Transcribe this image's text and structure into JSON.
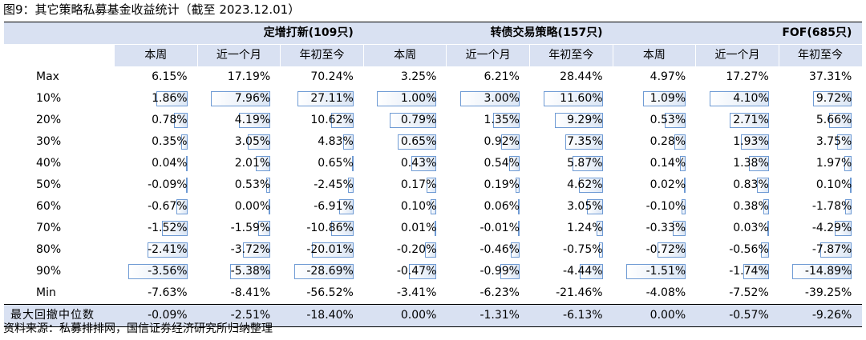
{
  "title": "图9：其它策略私募基金收益统计（截至 2023.12.01）",
  "groups": [
    "定增打新(109只)",
    "转债交易策略(157只)",
    "FOF(685只)"
  ],
  "subheaders": [
    "本周",
    "近一个月",
    "年初至今",
    "本周",
    "近一个月",
    "年初至今",
    "本周",
    "近一个月",
    "年初至今"
  ],
  "rows": [
    {
      "label": "Max",
      "values": [
        "6.15%",
        "17.19%",
        "70.24%",
        "3.25%",
        "6.21%",
        "28.44%",
        "4.97%",
        "17.27%",
        "37.31%"
      ]
    },
    {
      "label": "10%",
      "values": [
        "1.86%",
        "7.96%",
        "27.11%",
        "1.00%",
        "3.00%",
        "11.60%",
        "1.09%",
        "4.10%",
        "9.72%"
      ]
    },
    {
      "label": "20%",
      "values": [
        "0.78%",
        "4.19%",
        "10.62%",
        "0.79%",
        "1.35%",
        "9.29%",
        "0.53%",
        "2.71%",
        "5.66%"
      ]
    },
    {
      "label": "30%",
      "values": [
        "0.35%",
        "3.05%",
        "4.83%",
        "0.65%",
        "0.92%",
        "7.35%",
        "0.28%",
        "1.93%",
        "3.75%"
      ]
    },
    {
      "label": "40%",
      "values": [
        "0.04%",
        "2.01%",
        "0.65%",
        "0.43%",
        "0.54%",
        "5.87%",
        "0.14%",
        "1.38%",
        "1.97%"
      ]
    },
    {
      "label": "50%",
      "values": [
        "-0.09%",
        "0.53%",
        "-2.45%",
        "0.17%",
        "0.19%",
        "4.62%",
        "0.02%",
        "0.83%",
        "0.10%"
      ]
    },
    {
      "label": "60%",
      "values": [
        "-0.67%",
        "0.00%",
        "-6.91%",
        "0.10%",
        "0.06%",
        "3.05%",
        "-0.10%",
        "0.38%",
        "-1.78%"
      ]
    },
    {
      "label": "70%",
      "values": [
        "-1.52%",
        "-1.59%",
        "-10.86%",
        "0.01%",
        "-0.01%",
        "1.24%",
        "-0.33%",
        "0.03%",
        "-4.29%"
      ]
    },
    {
      "label": "80%",
      "values": [
        "-2.41%",
        "-3.72%",
        "-20.01%",
        "-0.20%",
        "-0.46%",
        "-0.75%",
        "-0.72%",
        "-0.56%",
        "-7.87%"
      ]
    },
    {
      "label": "90%",
      "values": [
        "-3.56%",
        "-5.38%",
        "-28.69%",
        "-0.47%",
        "-0.99%",
        "-4.44%",
        "-1.51%",
        "-1.74%",
        "-14.89%"
      ]
    },
    {
      "label": "Min",
      "values": [
        "-7.63%",
        "-8.41%",
        "-56.52%",
        "-3.41%",
        "-6.23%",
        "-21.46%",
        "-4.08%",
        "-7.52%",
        "-39.25%"
      ]
    }
  ],
  "data_bar_columns": [
    0,
    1,
    2,
    3,
    4,
    5,
    6,
    7,
    8
  ],
  "data_bar_rows": [
    1,
    2,
    3,
    4,
    5,
    6,
    7,
    8,
    9
  ],
  "footer": {
    "label": "最大回撤中位数",
    "values": [
      "-0.09%",
      "-2.51%",
      "-18.40%",
      "0.00%",
      "-1.31%",
      "-6.13%",
      "0.00%",
      "-0.57%",
      "-9.26%"
    ]
  },
  "source": "资料来源：私募排排网，国信证券经济研究所归纳整理",
  "colors": {
    "header_bg": "#d9e1f2",
    "bar_border": "#6f9bd4",
    "bar_fill": "#dbe6f5"
  }
}
